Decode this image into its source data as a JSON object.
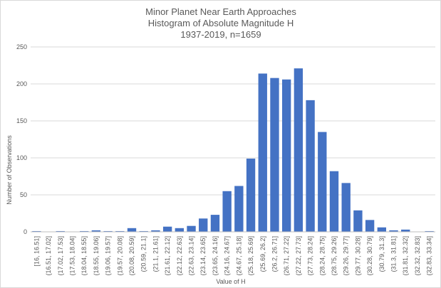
{
  "chart_data": {
    "type": "bar",
    "title_lines": [
      "Minor Planet Near Earth Approaches",
      "Histogram of Absolute Magnitude H",
      "1937-2019, n=1659"
    ],
    "xlabel": "Value of H",
    "ylabel": "Number of Observations",
    "ylim": [
      0,
      250
    ],
    "yticks": [
      0,
      50,
      100,
      150,
      200,
      250
    ],
    "grid": true,
    "legend": "none",
    "categories": [
      "[16, 16.51]",
      "(16.51, 17.02]",
      "(17.02, 17.53]",
      "(17.53, 18.04]",
      "(18.04, 18.55]",
      "(18.55, 19.06]",
      "(19.06, 19.57]",
      "(19.57, 20.08]",
      "(20.08, 20.59]",
      "(20.59, 21.1]",
      "(21.1, 21.61]",
      "(21.61, 22.12]",
      "(22.12, 22.63]",
      "(22.63, 23.14]",
      "(23.14, 23.65]",
      "(23.65, 24.16]",
      "(24.16, 24.67]",
      "(24.67, 25.18]",
      "(25.18, 25.69]",
      "(25.69, 26.2]",
      "(26.2, 26.71]",
      "(26.71, 27.22]",
      "(27.22, 27.73]",
      "(27.73, 28.24]",
      "(28.24, 28.75]",
      "(28.75, 29.26]",
      "(29.26, 29.77]",
      "(29.77, 30.28]",
      "(30.28, 30.79]",
      "(30.79, 31.3]",
      "(31.3, 31.81]",
      "(31.81, 32.32]",
      "(32.32, 32.83]",
      "(32.83, 33.34]"
    ],
    "values": [
      1,
      0,
      1,
      0,
      1,
      2,
      1,
      1,
      5,
      1,
      2,
      7,
      5,
      8,
      18,
      23,
      55,
      62,
      99,
      214,
      208,
      206,
      221,
      178,
      135,
      82,
      66,
      29,
      16,
      6,
      2,
      3,
      0,
      1
    ],
    "colors": {
      "bar": "#4472c4",
      "grid": "#d9d9d9",
      "axis": "#bfbfbf",
      "text": "#595959"
    }
  }
}
